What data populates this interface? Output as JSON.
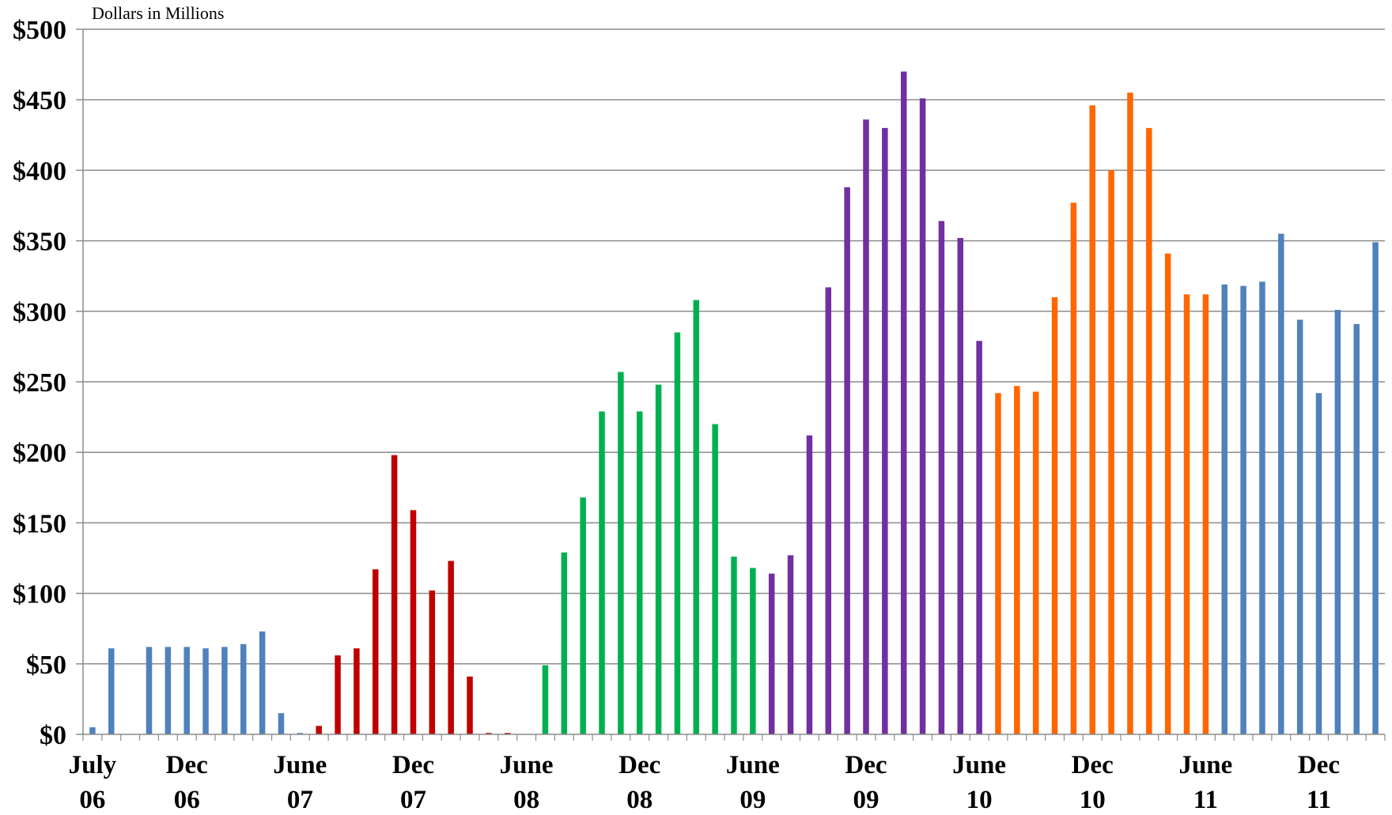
{
  "chart_data": {
    "type": "bar",
    "unit_label": "Dollars in Millions",
    "ylim": [
      0,
      500
    ],
    "y_ticks": [
      0,
      50,
      100,
      150,
      200,
      250,
      300,
      350,
      400,
      450,
      500
    ],
    "y_tick_labels": [
      "$0",
      "$50",
      "$100",
      "$150",
      "$200",
      "$250",
      "$300",
      "$350",
      "$400",
      "$450",
      "$500"
    ],
    "grid": true,
    "x_tick_labels": [
      {
        "index": 0,
        "line1": "July",
        "line2": "06"
      },
      {
        "index": 5,
        "line1": "Dec",
        "line2": "06"
      },
      {
        "index": 11,
        "line1": "June",
        "line2": "07"
      },
      {
        "index": 17,
        "line1": "Dec",
        "line2": "07"
      },
      {
        "index": 23,
        "line1": "June",
        "line2": "08"
      },
      {
        "index": 29,
        "line1": "Dec",
        "line2": "08"
      },
      {
        "index": 35,
        "line1": "June",
        "line2": "09"
      },
      {
        "index": 41,
        "line1": "Dec",
        "line2": "09"
      },
      {
        "index": 47,
        "line1": "June",
        "line2": "10"
      },
      {
        "index": 53,
        "line1": "Dec",
        "line2": "10"
      },
      {
        "index": 59,
        "line1": "June",
        "line2": "11"
      },
      {
        "index": 65,
        "line1": "Dec",
        "line2": "11"
      }
    ],
    "series": [
      {
        "color": "#4f81bd",
        "start_index": 0,
        "values": [
          5,
          61,
          0,
          62,
          62,
          62,
          61,
          62,
          64,
          73,
          15,
          1
        ]
      },
      {
        "color": "#c00000",
        "start_index": 12,
        "values": [
          6,
          56,
          61,
          117,
          198,
          159,
          102,
          123,
          41,
          1,
          1,
          0
        ]
      },
      {
        "color": "#00b050",
        "start_index": 24,
        "values": [
          49,
          129,
          168,
          229,
          257,
          229,
          248,
          285,
          308,
          220,
          126,
          118
        ]
      },
      {
        "color": "#7030a0",
        "start_index": 36,
        "values": [
          114,
          127,
          212,
          317,
          388,
          436,
          430,
          470,
          451,
          364,
          352,
          279
        ]
      },
      {
        "color": "#ff6600",
        "start_index": 48,
        "values": [
          242,
          247,
          243,
          310,
          377,
          446,
          400,
          455,
          430,
          341,
          312,
          312
        ]
      },
      {
        "color": "#4f81bd",
        "start_index": 60,
        "values": [
          319,
          318,
          321,
          355,
          294,
          242,
          301,
          291,
          349
        ]
      }
    ]
  }
}
